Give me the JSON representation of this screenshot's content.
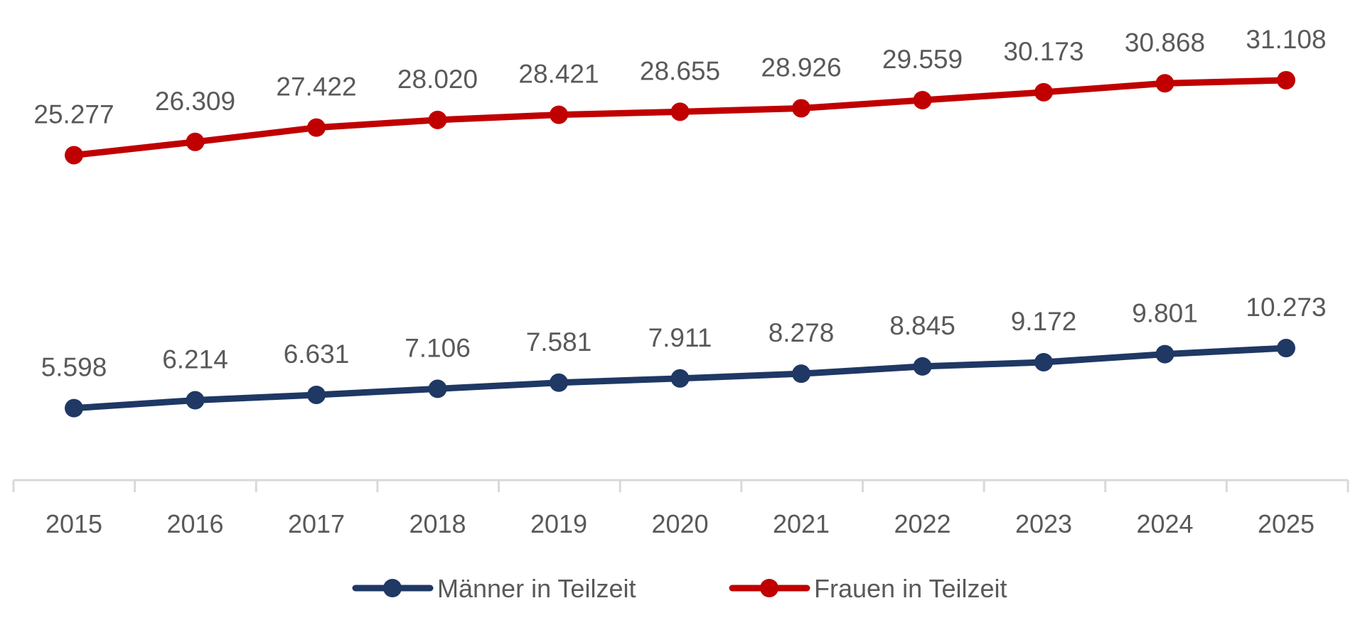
{
  "chart_data": {
    "type": "line",
    "title": "",
    "xlabel": "",
    "ylabel": "",
    "categories": [
      "2015",
      "2016",
      "2017",
      "2018",
      "2019",
      "2020",
      "2021",
      "2022",
      "2023",
      "2024",
      "2025"
    ],
    "ylim": [
      0,
      37000
    ],
    "grid": false,
    "legend_position": "bottom",
    "series": [
      {
        "name": "Männer in Teilzeit",
        "color": "#1f3864",
        "values": [
          5598,
          6214,
          6631,
          7106,
          7581,
          7911,
          8278,
          8845,
          9172,
          9801,
          10273
        ],
        "labels": [
          "5.598",
          "6.214",
          "6.631",
          "7.106",
          "7.581",
          "7.911",
          "8.278",
          "8.845",
          "9.172",
          "9.801",
          "10.273"
        ]
      },
      {
        "name": "Frauen in Teilzeit",
        "color": "#c00000",
        "values": [
          25277,
          26309,
          27422,
          28020,
          28421,
          28655,
          28926,
          29559,
          30173,
          30868,
          31108
        ],
        "labels": [
          "25.277",
          "26.309",
          "27.422",
          "28.020",
          "28.421",
          "28.655",
          "28.926",
          "29.559",
          "30.173",
          "30.868",
          "31.108"
        ]
      }
    ]
  }
}
